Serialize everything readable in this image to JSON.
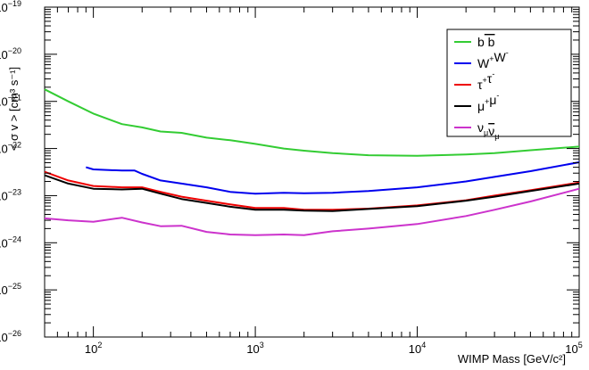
{
  "chart_data": {
    "type": "line",
    "title": "",
    "xlabel": "WIMP Mass [GeV/c²]",
    "ylabel": "< σ v > [cm³ s⁻¹]",
    "xscale": "log",
    "yscale": "log",
    "xlim": [
      50,
      100000
    ],
    "ylim": [
      1e-26,
      1e-19
    ],
    "grid": false,
    "legend_position": "top-right",
    "x_tick_labels": [
      {
        "value": 100,
        "base": "10",
        "exp": "2"
      },
      {
        "value": 1000,
        "base": "10",
        "exp": "3"
      },
      {
        "value": 10000,
        "base": "10",
        "exp": "4"
      },
      {
        "value": 100000,
        "base": "10",
        "exp": "5"
      }
    ],
    "y_tick_labels": [
      {
        "value": 1e-26,
        "base": "10",
        "exp": "−26"
      },
      {
        "value": 1e-25,
        "base": "10",
        "exp": "−25"
      },
      {
        "value": 1e-24,
        "base": "10",
        "exp": "−24"
      },
      {
        "value": 1e-23,
        "base": "10",
        "exp": "−23"
      },
      {
        "value": 1e-22,
        "base": "10",
        "exp": "−22"
      },
      {
        "value": 1e-21,
        "base": "10",
        "exp": "−21"
      },
      {
        "value": 1e-20,
        "base": "10",
        "exp": "−20"
      },
      {
        "value": 1e-19,
        "base": "10",
        "exp": "−19"
      }
    ],
    "series": [
      {
        "legend": {
          "text": "b",
          "sub": "",
          "sup": "",
          "text2": " b",
          "sub2": "",
          "sup2": "",
          "overbar2": true
        },
        "color": "#33cc33",
        "x": [
          50,
          70,
          100,
          150,
          200,
          260,
          350,
          500,
          700,
          1000,
          1500,
          2000,
          3000,
          5000,
          10000,
          20000,
          30000,
          50000,
          100000
        ],
        "y": [
          1.8e-21,
          1e-21,
          5.5e-22,
          3.3e-22,
          2.8e-22,
          2.3e-22,
          2.15e-22,
          1.7e-22,
          1.5e-22,
          1.25e-22,
          1e-22,
          9e-23,
          8e-23,
          7.2e-23,
          7e-23,
          7.5e-23,
          8e-23,
          9.2e-23,
          1.1e-22
        ]
      },
      {
        "legend": {
          "text": "W",
          "sub": "",
          "sup": "+",
          "text2": "W",
          "sub2": "",
          "sup2": "-",
          "overbar2": false
        },
        "color": "#0000ee",
        "x": [
          90,
          100,
          150,
          180,
          200,
          260,
          350,
          500,
          700,
          1000,
          1500,
          2000,
          3000,
          5000,
          10000,
          20000,
          30000,
          50000,
          100000
        ],
        "y": [
          4e-23,
          3.6e-23,
          3.4e-23,
          3.4e-23,
          2.9e-23,
          2.1e-23,
          1.8e-23,
          1.5e-23,
          1.2e-23,
          1.1e-23,
          1.15e-23,
          1.12e-23,
          1.15e-23,
          1.25e-23,
          1.5e-23,
          2e-23,
          2.5e-23,
          3.3e-23,
          5.1e-23
        ]
      },
      {
        "legend": {
          "text": "τ",
          "sub": "",
          "sup": "+",
          "text2": "τ",
          "sub2": "",
          "sup2": "-",
          "overbar2": false
        },
        "color": "#ee0000",
        "x": [
          50,
          70,
          100,
          150,
          200,
          260,
          350,
          500,
          700,
          1000,
          1500,
          2000,
          3000,
          5000,
          10000,
          20000,
          30000,
          50000,
          100000
        ],
        "y": [
          3.2e-23,
          2.1e-23,
          1.6e-23,
          1.5e-23,
          1.5e-23,
          1.2e-23,
          9.5e-24,
          7.8e-24,
          6.5e-24,
          5.5e-24,
          5.5e-24,
          5e-24,
          5e-24,
          5.3e-24,
          6.2e-24,
          8e-24,
          1e-23,
          1.3e-23,
          1.9e-23
        ]
      },
      {
        "legend": {
          "text": "μ",
          "sub": "",
          "sup": "+",
          "text2": "μ",
          "sub2": "",
          "sup2": "-",
          "overbar2": false
        },
        "color": "#000000",
        "x": [
          50,
          70,
          100,
          150,
          200,
          260,
          350,
          500,
          700,
          1000,
          1500,
          2000,
          3000,
          5000,
          10000,
          20000,
          30000,
          50000,
          100000
        ],
        "y": [
          2.7e-23,
          1.8e-23,
          1.4e-23,
          1.35e-23,
          1.4e-23,
          1.1e-23,
          8.5e-24,
          7e-24,
          5.8e-24,
          5e-24,
          5e-24,
          4.8e-24,
          4.7e-24,
          5.2e-24,
          6e-24,
          7.8e-24,
          9.5e-24,
          1.25e-23,
          1.8e-23
        ]
      },
      {
        "legend": {
          "text": "ν",
          "sub": "μ",
          "sup": "",
          "text2": "ν",
          "sub2": "μ",
          "sup2": "",
          "overbar2": true
        },
        "color": "#cc33cc",
        "x": [
          50,
          70,
          100,
          150,
          200,
          260,
          350,
          500,
          700,
          1000,
          1500,
          2000,
          3000,
          5000,
          10000,
          20000,
          30000,
          50000,
          100000
        ],
        "y": [
          3.3e-24,
          3e-24,
          2.8e-24,
          3.4e-24,
          2.7e-24,
          2.25e-24,
          2.3e-24,
          1.7e-24,
          1.5e-24,
          1.45e-24,
          1.5e-24,
          1.45e-24,
          1.75e-24,
          2e-24,
          2.5e-24,
          3.7e-24,
          5e-24,
          7.5e-24,
          1.4e-23
        ]
      }
    ]
  }
}
